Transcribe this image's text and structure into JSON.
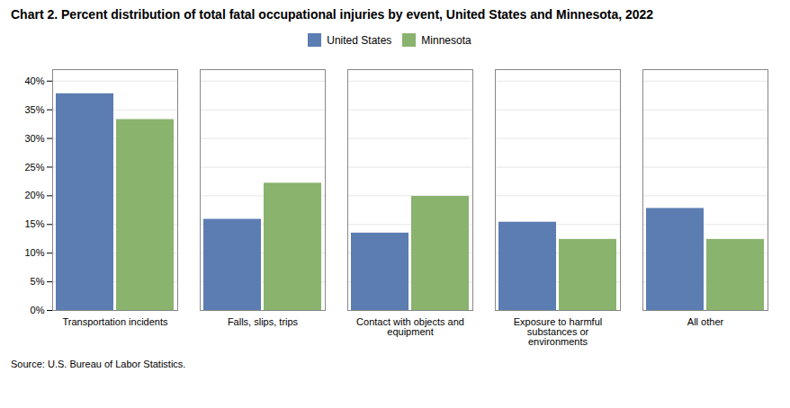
{
  "chart_data": {
    "type": "bar",
    "title": "Chart 2. Percent distribution of total fatal occupational injuries by event, United States and Minnesota, 2022",
    "caption": "Source: U.S. Bureau of Labor Statistics.",
    "categories": [
      "Transportation incidents",
      "Falls, slips, trips",
      "Contact with objects and\nequipment",
      "Exposure to harmful\nsubstances or\nenvironments",
      "All other"
    ],
    "series": [
      {
        "name": "United States",
        "color": "#5b7db1",
        "values": [
          37.8,
          15.9,
          13.5,
          15.4,
          17.8
        ]
      },
      {
        "name": "Minnesota",
        "color": "#8ab36e",
        "values": [
          33.3,
          22.2,
          19.9,
          12.4,
          12.4
        ]
      }
    ],
    "ylim": [
      0,
      42
    ],
    "yticks": [
      {
        "value": 0,
        "label": "0%"
      },
      {
        "value": 5,
        "label": "5%"
      },
      {
        "value": 10,
        "label": "10%"
      },
      {
        "value": 15,
        "label": "15%"
      },
      {
        "value": 20,
        "label": "20%"
      },
      {
        "value": 25,
        "label": "25%"
      },
      {
        "value": 30,
        "label": "30%"
      },
      {
        "value": 35,
        "label": "35%"
      },
      {
        "value": 40,
        "label": "40%"
      }
    ],
    "grid": true,
    "legend": "top"
  }
}
